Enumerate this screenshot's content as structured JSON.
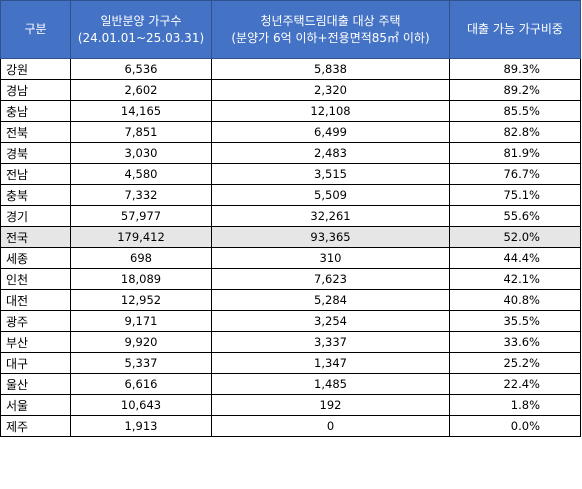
{
  "header": {
    "region": "구분",
    "general_line1": "일반분양 가구수",
    "general_line2": "(24.01.01~25.03.31)",
    "youth_line1": "청년주택드림대출 대상 주택",
    "youth_line2": "(분양가 6억 이하+전용면적85㎡ 이하)",
    "ratio": "대출 가능 가구비중"
  },
  "rows": [
    {
      "region": "강원",
      "general": "6,536",
      "youth": "5,838",
      "ratio": "89.3%"
    },
    {
      "region": "경남",
      "general": "2,602",
      "youth": "2,320",
      "ratio": "89.2%"
    },
    {
      "region": "충남",
      "general": "14,165",
      "youth": "12,108",
      "ratio": "85.5%"
    },
    {
      "region": "전북",
      "general": "7,851",
      "youth": "6,499",
      "ratio": "82.8%"
    },
    {
      "region": "경북",
      "general": "3,030",
      "youth": "2,483",
      "ratio": "81.9%"
    },
    {
      "region": "전남",
      "general": "4,580",
      "youth": "3,515",
      "ratio": "76.7%"
    },
    {
      "region": "충북",
      "general": "7,332",
      "youth": "5,509",
      "ratio": "75.1%"
    },
    {
      "region": "경기",
      "general": "57,977",
      "youth": "32,261",
      "ratio": "55.6%"
    },
    {
      "region": "전국",
      "general": "179,412",
      "youth": "93,365",
      "ratio": "52.0%"
    },
    {
      "region": "세종",
      "general": "698",
      "youth": "310",
      "ratio": "44.4%"
    },
    {
      "region": "인천",
      "general": "18,089",
      "youth": "7,623",
      "ratio": "42.1%"
    },
    {
      "region": "대전",
      "general": "12,952",
      "youth": "5,284",
      "ratio": "40.8%"
    },
    {
      "region": "광주",
      "general": "9,171",
      "youth": "3,254",
      "ratio": "35.5%"
    },
    {
      "region": "부산",
      "general": "9,920",
      "youth": "3,337",
      "ratio": "33.6%"
    },
    {
      "region": "대구",
      "general": "5,337",
      "youth": "1,347",
      "ratio": "25.2%"
    },
    {
      "region": "울산",
      "general": "6,616",
      "youth": "1,485",
      "ratio": "22.4%"
    },
    {
      "region": "서울",
      "general": "10,643",
      "youth": "192",
      "ratio": "1.8%"
    },
    {
      "region": "제주",
      "general": "1,913",
      "youth": "0",
      "ratio": "0.0%"
    }
  ],
  "colors": {
    "header_bg": "#4472c4",
    "header_text": "#ffffff",
    "highlight_row_bg": "#e7e6e6"
  }
}
